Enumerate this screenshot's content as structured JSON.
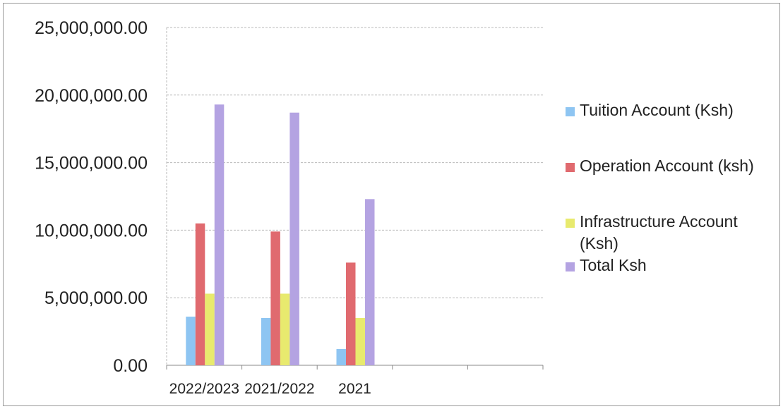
{
  "chart_data": {
    "type": "bar",
    "title": "",
    "xlabel": "",
    "ylabel": "",
    "categories": [
      "2022/2023",
      "2021/2022",
      "2021"
    ],
    "ylim": [
      0,
      25000000
    ],
    "yticks": [
      "0.00",
      "5,000,000.00",
      "10,000,000.00",
      "15,000,000.00",
      "20,000,000.00",
      "25,000,000.00"
    ],
    "grid": true,
    "legend_position": "right",
    "series": [
      {
        "name": "Tuition Account (Ksh)",
        "color": "#8ec5f2",
        "values": [
          3600000,
          3500000,
          1200000
        ]
      },
      {
        "name": "Operation Account (ksh)",
        "color": "#e06a6f",
        "values": [
          10500000,
          9900000,
          7600000
        ]
      },
      {
        "name": "Infrastructure Account (Ksh)",
        "color": "#e8ea6e",
        "values": [
          5300000,
          5300000,
          3500000
        ]
      },
      {
        "name": "Total Ksh",
        "color": "#b4a3e2",
        "values": [
          19300000,
          18700000,
          12300000
        ]
      }
    ]
  }
}
